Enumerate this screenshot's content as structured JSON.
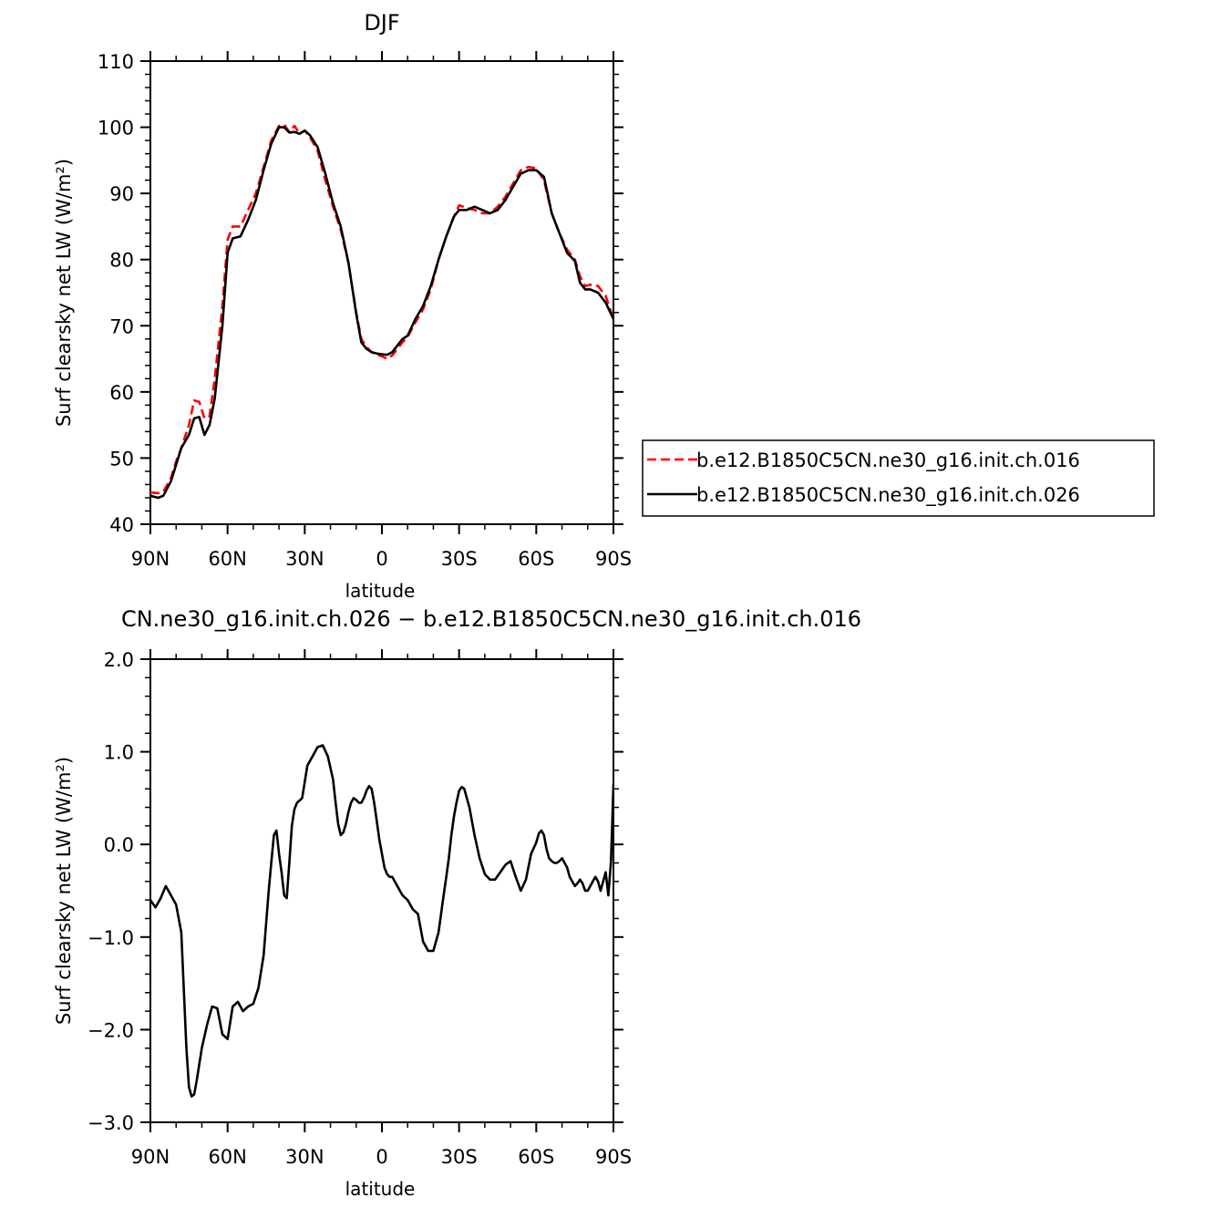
{
  "chart_data": [
    {
      "type": "line",
      "title": "DJF",
      "xlabel": "latitude",
      "ylabel": "Surf clearsky net LW (W/m²)",
      "xlim": [
        -90,
        90
      ],
      "ylim": [
        40,
        110
      ],
      "xticks": [
        -90,
        -60,
        -30,
        0,
        30,
        60,
        90
      ],
      "xtick_labels": [
        "90N",
        "60N",
        "30N",
        "0",
        "30S",
        "60S",
        "90S"
      ],
      "yticks": [
        40,
        50,
        60,
        70,
        80,
        90,
        100,
        110
      ],
      "ytick_labels": [
        "40",
        "50",
        "60",
        "70",
        "80",
        "90",
        "100",
        "110"
      ],
      "grid": false,
      "legend_position": "right",
      "series": [
        {
          "name": "b.e12.B1850C5CN.ne30_g16.init.ch.016",
          "color": "#ff0000",
          "dash": "dashed",
          "x": [
            -90,
            -87,
            -85,
            -82,
            -80,
            -78,
            -75,
            -73,
            -71,
            -69,
            -67,
            -65,
            -62,
            -60,
            -58,
            -55,
            -52,
            -49,
            -46,
            -43,
            -40,
            -38,
            -36,
            -34,
            -32,
            -30,
            -28,
            -25,
            -22,
            -19,
            -16,
            -13,
            -10,
            -8,
            -6,
            -4,
            -2,
            0,
            2,
            4,
            6,
            8,
            10,
            13,
            16,
            19,
            22,
            25,
            28,
            30,
            33,
            36,
            39,
            42,
            45,
            48,
            51,
            54,
            57,
            60,
            63,
            66,
            69,
            72,
            75,
            77,
            79,
            81,
            84,
            87,
            90
          ],
          "y": [
            44.8,
            44.7,
            44.9,
            47.0,
            49.5,
            51.5,
            55.0,
            58.7,
            58.5,
            56.0,
            56.3,
            62.0,
            73.0,
            83.0,
            85.0,
            85.0,
            87.5,
            90.0,
            94.0,
            98.0,
            100.2,
            100.4,
            99.3,
            100.2,
            99.0,
            99.5,
            98.5,
            96.5,
            92.0,
            88.0,
            84.5,
            79.5,
            72.0,
            68.0,
            66.8,
            66.0,
            65.6,
            65.4,
            65.0,
            65.5,
            66.5,
            67.5,
            68.3,
            70.5,
            72.5,
            75.5,
            80.0,
            83.5,
            86.5,
            88.2,
            87.8,
            87.5,
            87.0,
            87.0,
            88.0,
            89.5,
            91.5,
            93.5,
            94.0,
            93.8,
            92.0,
            87.0,
            84.0,
            81.5,
            80.0,
            77.5,
            76.0,
            76.2,
            76.0,
            74.5,
            71.0
          ]
        },
        {
          "name": "b.e12.B1850C5CN.ne30_g16.init.ch.026",
          "color": "#000000",
          "dash": "solid",
          "x": [
            -90,
            -87,
            -85,
            -82,
            -80,
            -78,
            -75,
            -73,
            -71,
            -69,
            -67,
            -65,
            -62,
            -60,
            -58,
            -55,
            -52,
            -49,
            -46,
            -43,
            -40,
            -38,
            -36,
            -34,
            -32,
            -30,
            -28,
            -25,
            -22,
            -19,
            -16,
            -13,
            -10,
            -8,
            -6,
            -4,
            -2,
            0,
            2,
            4,
            6,
            8,
            10,
            13,
            16,
            19,
            22,
            25,
            28,
            30,
            33,
            36,
            39,
            42,
            45,
            48,
            51,
            54,
            57,
            60,
            63,
            66,
            69,
            72,
            75,
            77,
            79,
            81,
            84,
            87,
            90
          ],
          "y": [
            44.3,
            44.0,
            44.3,
            46.5,
            49.0,
            51.5,
            53.5,
            56.0,
            56.2,
            53.5,
            55.0,
            59.0,
            70.0,
            81.0,
            83.2,
            83.5,
            86.0,
            89.0,
            93.5,
            97.5,
            100.0,
            100.0,
            99.2,
            99.3,
            99.0,
            99.5,
            98.8,
            97.0,
            93.0,
            88.5,
            85.0,
            79.5,
            71.8,
            67.5,
            66.5,
            66.0,
            65.8,
            65.7,
            65.6,
            66.0,
            67.0,
            68.0,
            68.5,
            71.0,
            73.0,
            76.0,
            80.0,
            83.5,
            86.5,
            87.5,
            87.5,
            88.0,
            87.5,
            87.0,
            87.5,
            89.0,
            91.0,
            93.0,
            93.5,
            93.5,
            92.5,
            87.0,
            84.0,
            81.0,
            79.8,
            76.5,
            75.5,
            75.5,
            75.0,
            73.5,
            71.0
          ]
        }
      ]
    },
    {
      "type": "line",
      "title": "CN.ne30_g16.init.ch.026 − b.e12.B1850C5CN.ne30_g16.init.ch.016",
      "xlabel": "latitude",
      "ylabel": "Surf clearsky net LW (W/m²)",
      "xlim": [
        -90,
        90
      ],
      "ylim": [
        -3.0,
        2.0
      ],
      "xticks": [
        -90,
        -60,
        -30,
        0,
        30,
        60,
        90
      ],
      "xtick_labels": [
        "90N",
        "60N",
        "30N",
        "0",
        "30S",
        "60S",
        "90S"
      ],
      "yticks": [
        -3.0,
        -2.0,
        -1.0,
        0.0,
        1.0,
        2.0
      ],
      "ytick_labels": [
        "−3.0",
        "−2.0",
        "−1.0",
        "0.0",
        "1.0",
        "2.0"
      ],
      "grid": false,
      "series": [
        {
          "color": "#000000",
          "dash": "solid",
          "x": [
            -90,
            -88,
            -86,
            -84,
            -82,
            -80,
            -78,
            -76,
            -75,
            -74,
            -73,
            -72,
            -70,
            -68,
            -66,
            -64,
            -62,
            -60,
            -58,
            -56,
            -54,
            -52,
            -50,
            -48,
            -46,
            -44,
            -43,
            -42,
            -41,
            -40,
            -39,
            -38,
            -37,
            -36,
            -35,
            -34,
            -33,
            -31,
            -29,
            -27,
            -25,
            -23,
            -21,
            -19,
            -18,
            -17,
            -16,
            -15,
            -14,
            -13,
            -12,
            -11,
            -10,
            -9,
            -8,
            -7,
            -6,
            -5,
            -4,
            -3,
            -2,
            -1,
            0,
            1,
            2,
            3,
            4,
            6,
            8,
            10,
            12,
            14,
            16,
            18,
            20,
            22,
            24,
            25,
            26,
            27,
            28,
            29,
            30,
            31,
            32,
            34,
            36,
            38,
            40,
            42,
            44,
            46,
            48,
            50,
            52,
            54,
            56,
            58,
            60,
            61,
            62,
            63,
            64,
            65,
            66,
            67,
            68,
            69,
            70,
            71,
            72,
            73,
            74,
            75,
            76,
            77,
            78,
            79,
            80,
            81,
            82,
            83,
            84,
            85,
            86,
            87,
            88,
            89,
            89.5,
            90
          ],
          "y": [
            -0.6,
            -0.68,
            -0.58,
            -0.45,
            -0.55,
            -0.65,
            -0.95,
            -2.2,
            -2.62,
            -2.72,
            -2.7,
            -2.55,
            -2.2,
            -1.95,
            -1.75,
            -1.77,
            -2.05,
            -2.1,
            -1.75,
            -1.7,
            -1.8,
            -1.75,
            -1.72,
            -1.55,
            -1.2,
            -0.5,
            -0.2,
            0.1,
            0.15,
            -0.1,
            -0.3,
            -0.55,
            -0.58,
            -0.2,
            0.2,
            0.38,
            0.45,
            0.5,
            0.85,
            0.95,
            1.05,
            1.07,
            0.95,
            0.7,
            0.45,
            0.22,
            0.1,
            0.13,
            0.22,
            0.35,
            0.45,
            0.5,
            0.48,
            0.45,
            0.45,
            0.5,
            0.58,
            0.63,
            0.6,
            0.45,
            0.25,
            0.05,
            -0.1,
            -0.25,
            -0.32,
            -0.35,
            -0.35,
            -0.45,
            -0.55,
            -0.6,
            -0.7,
            -0.75,
            -1.05,
            -1.15,
            -1.15,
            -0.95,
            -0.55,
            -0.35,
            -0.15,
            0.1,
            0.3,
            0.45,
            0.58,
            0.62,
            0.6,
            0.4,
            0.1,
            -0.15,
            -0.32,
            -0.38,
            -0.38,
            -0.3,
            -0.22,
            -0.18,
            -0.35,
            -0.5,
            -0.38,
            -0.1,
            0.02,
            0.12,
            0.15,
            0.1,
            -0.05,
            -0.15,
            -0.18,
            -0.2,
            -0.2,
            -0.18,
            -0.15,
            -0.2,
            -0.25,
            -0.35,
            -0.4,
            -0.45,
            -0.42,
            -0.38,
            -0.42,
            -0.5,
            -0.5,
            -0.45,
            -0.4,
            -0.35,
            -0.4,
            -0.5,
            -0.4,
            -0.3,
            -0.55,
            -0.2,
            0.2,
            0.65
          ]
        }
      ]
    }
  ]
}
